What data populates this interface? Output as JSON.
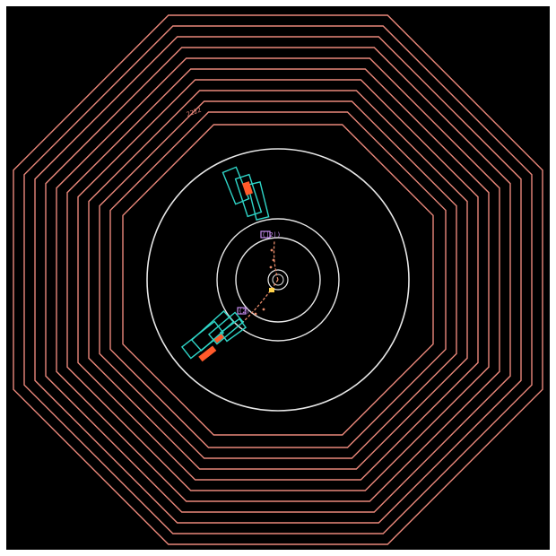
{
  "colors": {
    "background": "#000000",
    "frame": "#ffffff",
    "muon_chambers": "#e9877a",
    "tracker_rings": "#e8e8e8",
    "calorimeter_towers": "#2fd6c8",
    "energy_deposit": "#ff5a2a",
    "muon_track": "#e58a6a",
    "track_hit": "#ffd24a",
    "vertex_marker": "#c68cf0"
  },
  "labels": {
    "muon_chamber_hit": "2222",
    "upper_track_hit": "(|2|)",
    "lower_track_hit": "(2)"
  }
}
